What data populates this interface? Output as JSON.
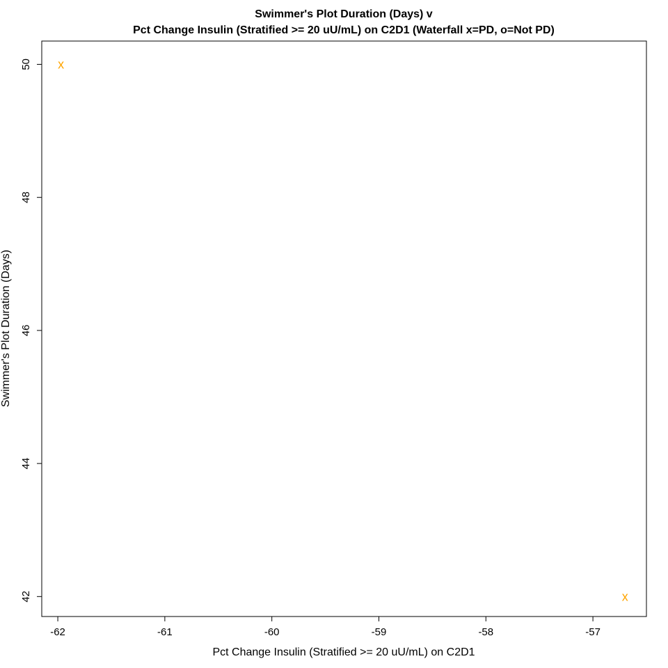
{
  "chart_data": {
    "type": "scatter",
    "title": "Swimmer's Plot Duration (Days) v",
    "subtitle": "Pct Change Insulin (Stratified >= 20 uU/mL) on C2D1 (Waterfall x=PD, o=Not PD)",
    "xlabel": "Pct Change Insulin (Stratified >= 20 uU/mL) on C2D1",
    "ylabel": "Swimmer's Plot Duration (Days)",
    "xlim": [
      -62.15,
      -56.5
    ],
    "ylim": [
      41.7,
      50.35
    ],
    "x_ticks": [
      -62,
      -61,
      -60,
      -59,
      -58,
      -57
    ],
    "y_ticks": [
      42,
      44,
      46,
      48,
      50
    ],
    "grid": false,
    "marker_color": "#FFA500",
    "points": [
      {
        "x": -61.97,
        "y": 50,
        "marker": "x"
      },
      {
        "x": -56.7,
        "y": 42,
        "marker": "x"
      }
    ]
  }
}
